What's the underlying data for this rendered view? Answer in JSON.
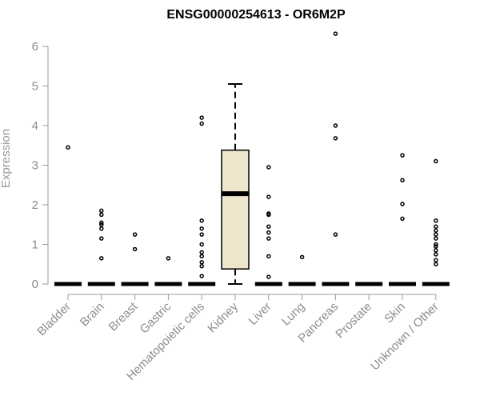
{
  "chart_data": {
    "type": "box",
    "title": "ENSG00000254613 - OR6M2P",
    "xlabel": "",
    "ylabel": "Expression",
    "ylim": [
      0,
      6.5
    ],
    "yticks": [
      0,
      1,
      2,
      3,
      4,
      5,
      6
    ],
    "categories": [
      "Bladder",
      "Brain",
      "Breast",
      "Gastric",
      "Hematopoietic cells",
      "Kidney",
      "Liver",
      "Lung",
      "Pancreas",
      "Prostate",
      "Skin",
      "Unknown / Other"
    ],
    "boxes": [
      {
        "category": "Bladder",
        "q1": 0,
        "median": 0,
        "q3": 0,
        "whisker_low": 0,
        "whisker_high": 0,
        "outliers": [
          3.45
        ]
      },
      {
        "category": "Brain",
        "q1": 0,
        "median": 0,
        "q3": 0,
        "whisker_low": 0,
        "whisker_high": 0,
        "outliers": [
          0.65,
          1.15,
          1.4,
          1.5,
          1.55,
          1.75,
          1.85
        ]
      },
      {
        "category": "Breast",
        "q1": 0,
        "median": 0,
        "q3": 0,
        "whisker_low": 0,
        "whisker_high": 0,
        "outliers": [
          0.88,
          1.25
        ]
      },
      {
        "category": "Gastric",
        "q1": 0,
        "median": 0,
        "q3": 0,
        "whisker_low": 0,
        "whisker_high": 0,
        "outliers": [
          0.65
        ]
      },
      {
        "category": "Hematopoietic cells",
        "q1": 0,
        "median": 0,
        "q3": 0,
        "whisker_low": 0,
        "whisker_high": 0,
        "outliers": [
          0.2,
          0.45,
          0.55,
          0.7,
          0.8,
          1.0,
          1.25,
          1.4,
          1.6,
          4.05,
          4.2
        ]
      },
      {
        "category": "Kidney",
        "q1": 0.38,
        "median": 2.28,
        "q3": 3.38,
        "whisker_low": 0,
        "whisker_high": 5.05,
        "outliers": []
      },
      {
        "category": "Liver",
        "q1": 0,
        "median": 0,
        "q3": 0,
        "whisker_low": 0,
        "whisker_high": 0,
        "outliers": [
          0.18,
          0.7,
          1.15,
          1.3,
          1.45,
          1.75,
          1.78,
          2.2,
          2.95
        ]
      },
      {
        "category": "Lung",
        "q1": 0,
        "median": 0,
        "q3": 0,
        "whisker_low": 0,
        "whisker_high": 0,
        "outliers": [
          0.68
        ]
      },
      {
        "category": "Pancreas",
        "q1": 0,
        "median": 0,
        "q3": 0,
        "whisker_low": 0,
        "whisker_high": 0,
        "outliers": [
          1.25,
          3.68,
          4.0,
          6.32
        ]
      },
      {
        "category": "Prostate",
        "q1": 0,
        "median": 0,
        "q3": 0,
        "whisker_low": 0,
        "whisker_high": 0,
        "outliers": []
      },
      {
        "category": "Skin",
        "q1": 0,
        "median": 0,
        "q3": 0,
        "whisker_low": 0,
        "whisker_high": 0,
        "outliers": [
          1.65,
          2.02,
          2.62,
          3.25
        ]
      },
      {
        "category": "Unknown / Other",
        "q1": 0,
        "median": 0,
        "q3": 0,
        "whisker_low": 0,
        "whisker_high": 0,
        "outliers": [
          0.5,
          0.6,
          0.75,
          0.85,
          0.95,
          1.0,
          1.15,
          1.25,
          1.35,
          1.45,
          1.6,
          3.1
        ]
      }
    ],
    "colors": {
      "box_fill": "#ede6cc",
      "box_stroke": "#000000",
      "axis": "#999999",
      "text": "#8c8c8c"
    },
    "grid": false,
    "legend": "none"
  }
}
